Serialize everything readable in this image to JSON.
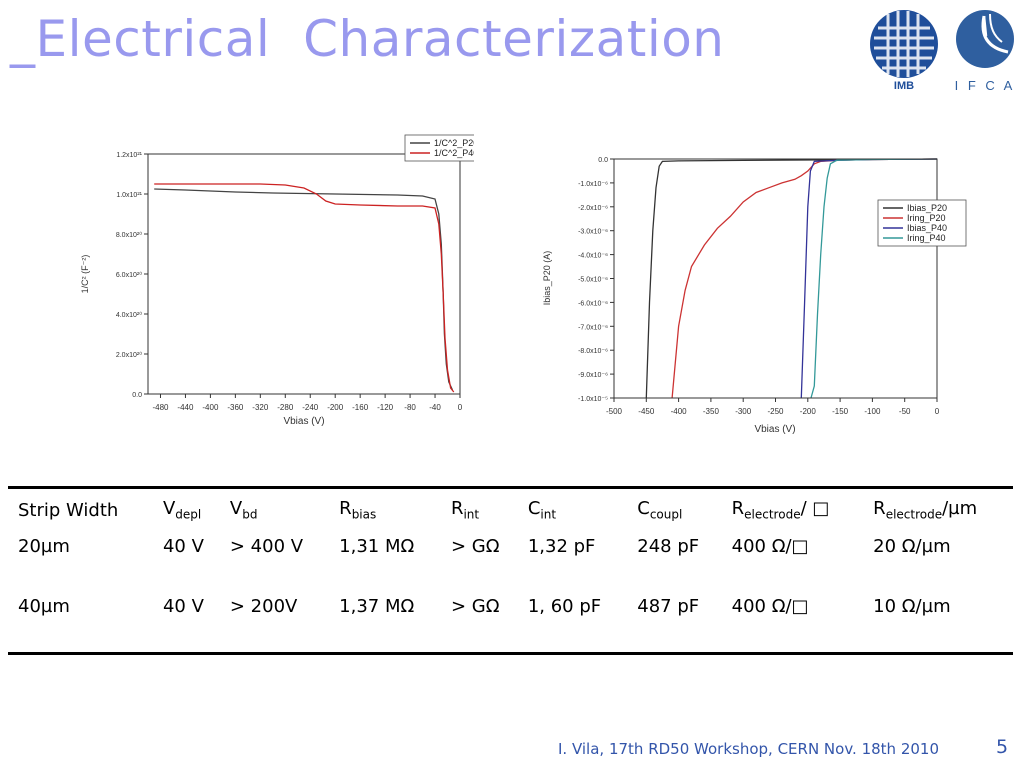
{
  "title": "_Electrical  Characterization",
  "logos": {
    "imb_text": "IMB",
    "ifca_text": "I F C A"
  },
  "colors": {
    "title": "#9999ee",
    "footer": "#3355aa"
  },
  "chart_data": [
    {
      "type": "line",
      "xlabel": "Vbias (V)",
      "ylabel": "1/C² (F⁻²)",
      "xlim": [
        -500,
        0
      ],
      "ylim": [
        0,
        1.2e+21
      ],
      "x_ticks": [
        -480,
        -440,
        -400,
        -360,
        -320,
        -280,
        -240,
        -200,
        -160,
        -120,
        -80,
        -40,
        0
      ],
      "y_tick_values": [
        0,
        2e+20,
        4e+20,
        6e+20,
        8e+20,
        1e+21,
        1.2e+21
      ],
      "y_tick_labels": [
        "0.0",
        "2.0x10²⁰",
        "4.0x10²⁰",
        "6.0x10²⁰",
        "8.0x10²⁰",
        "1.0x10²¹",
        "1.2x10²¹"
      ],
      "legend_position": "top-right",
      "series": [
        {
          "name": "1/C^2_P20",
          "color": "#444444",
          "points": [
            [
              -490,
              1.025e+21
            ],
            [
              -440,
              1.02e+21
            ],
            [
              -360,
              1.01e+21
            ],
            [
              -300,
              1.005e+21
            ],
            [
              -200,
              1e+21
            ],
            [
              -100,
              9.95e+20
            ],
            [
              -60,
              9.9e+20
            ],
            [
              -40,
              9.75e+20
            ],
            [
              -34,
              9e+20
            ],
            [
              -30,
              7.5e+20
            ],
            [
              -27,
              5e+20
            ],
            [
              -25,
              3e+20
            ],
            [
              -22,
              1.5e+20
            ],
            [
              -18,
              6e+19
            ],
            [
              -12,
              2e+19
            ]
          ]
        },
        {
          "name": "1/C^2_P40",
          "color": "#cc2222",
          "points": [
            [
              -490,
              1.05e+21
            ],
            [
              -420,
              1.05e+21
            ],
            [
              -320,
              1.05e+21
            ],
            [
              -280,
              1.045e+21
            ],
            [
              -250,
              1.03e+21
            ],
            [
              -230,
              1e+21
            ],
            [
              -215,
              9.65e+20
            ],
            [
              -200,
              9.5e+20
            ],
            [
              -160,
              9.45e+20
            ],
            [
              -100,
              9.4e+20
            ],
            [
              -60,
              9.4e+20
            ],
            [
              -40,
              9.3e+20
            ],
            [
              -34,
              8.5e+20
            ],
            [
              -30,
              7e+20
            ],
            [
              -27,
              5e+20
            ],
            [
              -24,
              2.8e+20
            ],
            [
              -20,
              1.2e+20
            ],
            [
              -15,
              3e+19
            ],
            [
              -10,
              1e+19
            ]
          ]
        }
      ]
    },
    {
      "type": "line",
      "xlabel": "Vbias (V)",
      "ylabel": "Ibias_P20 (A)",
      "xlim": [
        -500,
        0
      ],
      "ylim": [
        -1e-05,
        0
      ],
      "x_ticks": [
        -500,
        -450,
        -400,
        -350,
        -300,
        -250,
        -200,
        -150,
        -100,
        -50,
        0
      ],
      "y_tick_values": [
        0,
        -1e-06,
        -2e-06,
        -3e-06,
        -4e-06,
        -5e-06,
        -6e-06,
        -7e-06,
        -8e-06,
        -9e-06,
        -1e-05
      ],
      "y_tick_labels": [
        "0.0",
        "-1.0x10⁻⁶",
        "-2.0x10⁻⁶",
        "-3.0x10⁻⁶",
        "-4.0x10⁻⁶",
        "-5.0x10⁻⁶",
        "-6.0x10⁻⁶",
        "-7.0x10⁻⁶",
        "-8.0x10⁻⁶",
        "-9.0x10⁻⁶",
        "-1.0x10⁻⁵"
      ],
      "legend_position": "right",
      "series": [
        {
          "name": "Ibias_P20",
          "color": "#333333",
          "points": [
            [
              -450,
              -1e-05
            ],
            [
              -445,
              -6e-06
            ],
            [
              -440,
              -3e-06
            ],
            [
              -435,
              -1.2e-06
            ],
            [
              -430,
              -3e-07
            ],
            [
              -425,
              -1e-07
            ],
            [
              -400,
              -8e-08
            ],
            [
              -300,
              -6e-08
            ],
            [
              -200,
              -4e-08
            ],
            [
              -100,
              -2e-08
            ],
            [
              0,
              0
            ]
          ]
        },
        {
          "name": "Iring_P20",
          "color": "#cc3333",
          "points": [
            [
              -410,
              -1e-05
            ],
            [
              -400,
              -7e-06
            ],
            [
              -390,
              -5.5e-06
            ],
            [
              -380,
              -4.5e-06
            ],
            [
              -360,
              -3.6e-06
            ],
            [
              -340,
              -2.9e-06
            ],
            [
              -320,
              -2.4e-06
            ],
            [
              -300,
              -1.8e-06
            ],
            [
              -280,
              -1.4e-06
            ],
            [
              -260,
              -1.2e-06
            ],
            [
              -240,
              -1e-06
            ],
            [
              -220,
              -8.5e-07
            ],
            [
              -210,
              -7e-07
            ],
            [
              -200,
              -5e-07
            ],
            [
              -190,
              -2e-07
            ],
            [
              -180,
              -1e-07
            ],
            [
              -150,
              -5e-08
            ],
            [
              -100,
              -2e-08
            ],
            [
              0,
              0
            ]
          ]
        },
        {
          "name": "Ibias_P40",
          "color": "#333399",
          "points": [
            [
              -210,
              -1e-05
            ],
            [
              -205,
              -6e-06
            ],
            [
              -200,
              -2e-06
            ],
            [
              -196,
              -5e-07
            ],
            [
              -190,
              -1e-07
            ],
            [
              -150,
              -5e-08
            ],
            [
              -100,
              -2e-08
            ],
            [
              0,
              0
            ]
          ]
        },
        {
          "name": "Iring_P40",
          "color": "#339999",
          "points": [
            [
              -195,
              -1e-05
            ],
            [
              -190,
              -9.5e-06
            ],
            [
              -185,
              -6.5e-06
            ],
            [
              -180,
              -4e-06
            ],
            [
              -175,
              -2e-06
            ],
            [
              -170,
              -8e-07
            ],
            [
              -165,
              -2e-07
            ],
            [
              -155,
              -5e-08
            ],
            [
              -100,
              -2e-08
            ],
            [
              0,
              0
            ]
          ]
        }
      ]
    }
  ],
  "table": {
    "headers": [
      {
        "base": "Strip Width",
        "sub": "",
        "suffix": ""
      },
      {
        "base": "V",
        "sub": "depl",
        "suffix": ""
      },
      {
        "base": "V",
        "sub": "bd",
        "suffix": ""
      },
      {
        "base": "R",
        "sub": "bias",
        "suffix": ""
      },
      {
        "base": "R",
        "sub": "int",
        "suffix": ""
      },
      {
        "base": "C",
        "sub": "int",
        "suffix": ""
      },
      {
        "base": "C",
        "sub": "coupl",
        "suffix": ""
      },
      {
        "base": "R",
        "sub": "electrode",
        "suffix": "/ □"
      },
      {
        "base": "R",
        "sub": "electrode",
        "suffix": "/µm"
      }
    ],
    "rows": [
      [
        "20µm",
        "40 V",
        "> 400 V",
        "1,31 MΩ",
        "> GΩ",
        "1,32 pF",
        "248 pF",
        "400 Ω/□",
        "20 Ω/µm"
      ],
      [
        "40µm",
        "40 V",
        "> 200V",
        "1,37 MΩ",
        "> GΩ",
        "1, 60 pF",
        "487 pF",
        "400 Ω/□",
        "10 Ω/µm"
      ]
    ]
  },
  "footer": "I. Vila, 17th RD50 Workshop, CERN  Nov. 18th 2010",
  "page_number": "5"
}
